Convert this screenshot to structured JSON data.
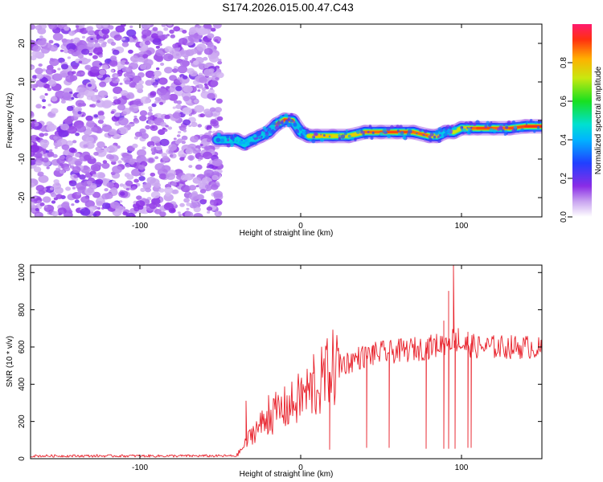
{
  "figure_title": "S174.2026.015.00.47.C43",
  "chart_data": [
    {
      "type": "heatmap",
      "title": "S174.2026.015.00.47.C43",
      "xlabel": "Height of straight line (km)",
      "ylabel": "Frequency (Hz)",
      "xlim": [
        -168,
        150
      ],
      "ylim": [
        -25,
        25
      ],
      "xticks": [
        -100,
        0,
        100
      ],
      "yticks": [
        -20,
        -10,
        0,
        10,
        20
      ],
      "noise_region": {
        "x": [
          -168,
          -50
        ],
        "description": "scattered low-amplitude noise"
      },
      "ridge": {
        "x": [
          -52,
          -45,
          -40,
          -35,
          -30,
          -25,
          -20,
          -15,
          -10,
          -5,
          0,
          5,
          10,
          20,
          30,
          40,
          50,
          60,
          70,
          80,
          85,
          90,
          95,
          100,
          105,
          110,
          120,
          130,
          140,
          150
        ],
        "frequency": [
          -5,
          -5,
          -5,
          -6,
          -5,
          -4,
          -3,
          -1,
          0.2,
          0,
          -3,
          -4,
          -4,
          -4,
          -4,
          -3,
          -3,
          -3,
          -3,
          -4,
          -4,
          -3,
          -3,
          -2,
          -2,
          -2,
          -2,
          -2,
          -1.5,
          -1.5
        ],
        "amplitude": [
          0.45,
          0.5,
          0.55,
          0.55,
          0.55,
          0.6,
          0.65,
          0.75,
          0.95,
          0.85,
          0.55,
          0.7,
          0.8,
          0.8,
          0.7,
          0.85,
          0.9,
          0.9,
          0.9,
          0.85,
          0.7,
          0.6,
          0.7,
          0.75,
          0.85,
          0.9,
          0.9,
          0.85,
          0.95,
          0.9
        ]
      },
      "colorbar": {
        "label": "Normalized spectral amplitude",
        "range": [
          0,
          1
        ],
        "ticks": [
          0.0,
          0.2,
          0.4,
          0.6,
          0.8
        ]
      }
    },
    {
      "type": "line",
      "xlabel": "Height of straight line (km)",
      "ylabel": "SNR (10 * v/v)",
      "xlim": [
        -168,
        150
      ],
      "ylim": [
        0,
        1040
      ],
      "xticks": [
        -100,
        0,
        100
      ],
      "yticks": [
        0,
        200,
        400,
        600,
        800,
        1000
      ],
      "series": [
        {
          "name": "SNR",
          "color": "#e8202a",
          "x": [
            -168,
            -150,
            -130,
            -110,
            -90,
            -70,
            -50,
            -40,
            -35,
            -30,
            -25,
            -20,
            -15,
            -10,
            -5,
            0,
            5,
            10,
            15,
            20,
            25,
            30,
            35,
            40,
            45,
            50,
            55,
            60,
            65,
            70,
            75,
            80,
            85,
            90,
            93,
            95,
            98,
            100,
            105,
            110,
            115,
            120,
            125,
            130,
            135,
            140,
            145,
            150
          ],
          "y": [
            15,
            15,
            15,
            15,
            15,
            15,
            15,
            15,
            70,
            140,
            180,
            220,
            250,
            270,
            290,
            330,
            360,
            380,
            440,
            480,
            510,
            520,
            540,
            550,
            560,
            570,
            570,
            580,
            580,
            590,
            590,
            600,
            610,
            620,
            640,
            640,
            620,
            610,
            610,
            600,
            600,
            600,
            600,
            600,
            600,
            600,
            600,
            580
          ],
          "spikes_up": [
            [
              -34,
              310
            ],
            [
              -20,
              340
            ],
            [
              0,
              400
            ],
            [
              8,
              560
            ],
            [
              45,
              610
            ],
            [
              80,
              650
            ],
            [
              89,
              740
            ],
            [
              92,
              900
            ],
            [
              95,
              1040
            ],
            [
              98,
              700
            ],
            [
              104,
              680
            ]
          ],
          "dropouts": [
            [
              18,
              50
            ],
            [
              41,
              60
            ],
            [
              55,
              60
            ],
            [
              78,
              55
            ],
            [
              89,
              55
            ],
            [
              92,
              55
            ],
            [
              96,
              55
            ],
            [
              104,
              60
            ],
            [
              106,
              60
            ]
          ]
        }
      ]
    }
  ]
}
